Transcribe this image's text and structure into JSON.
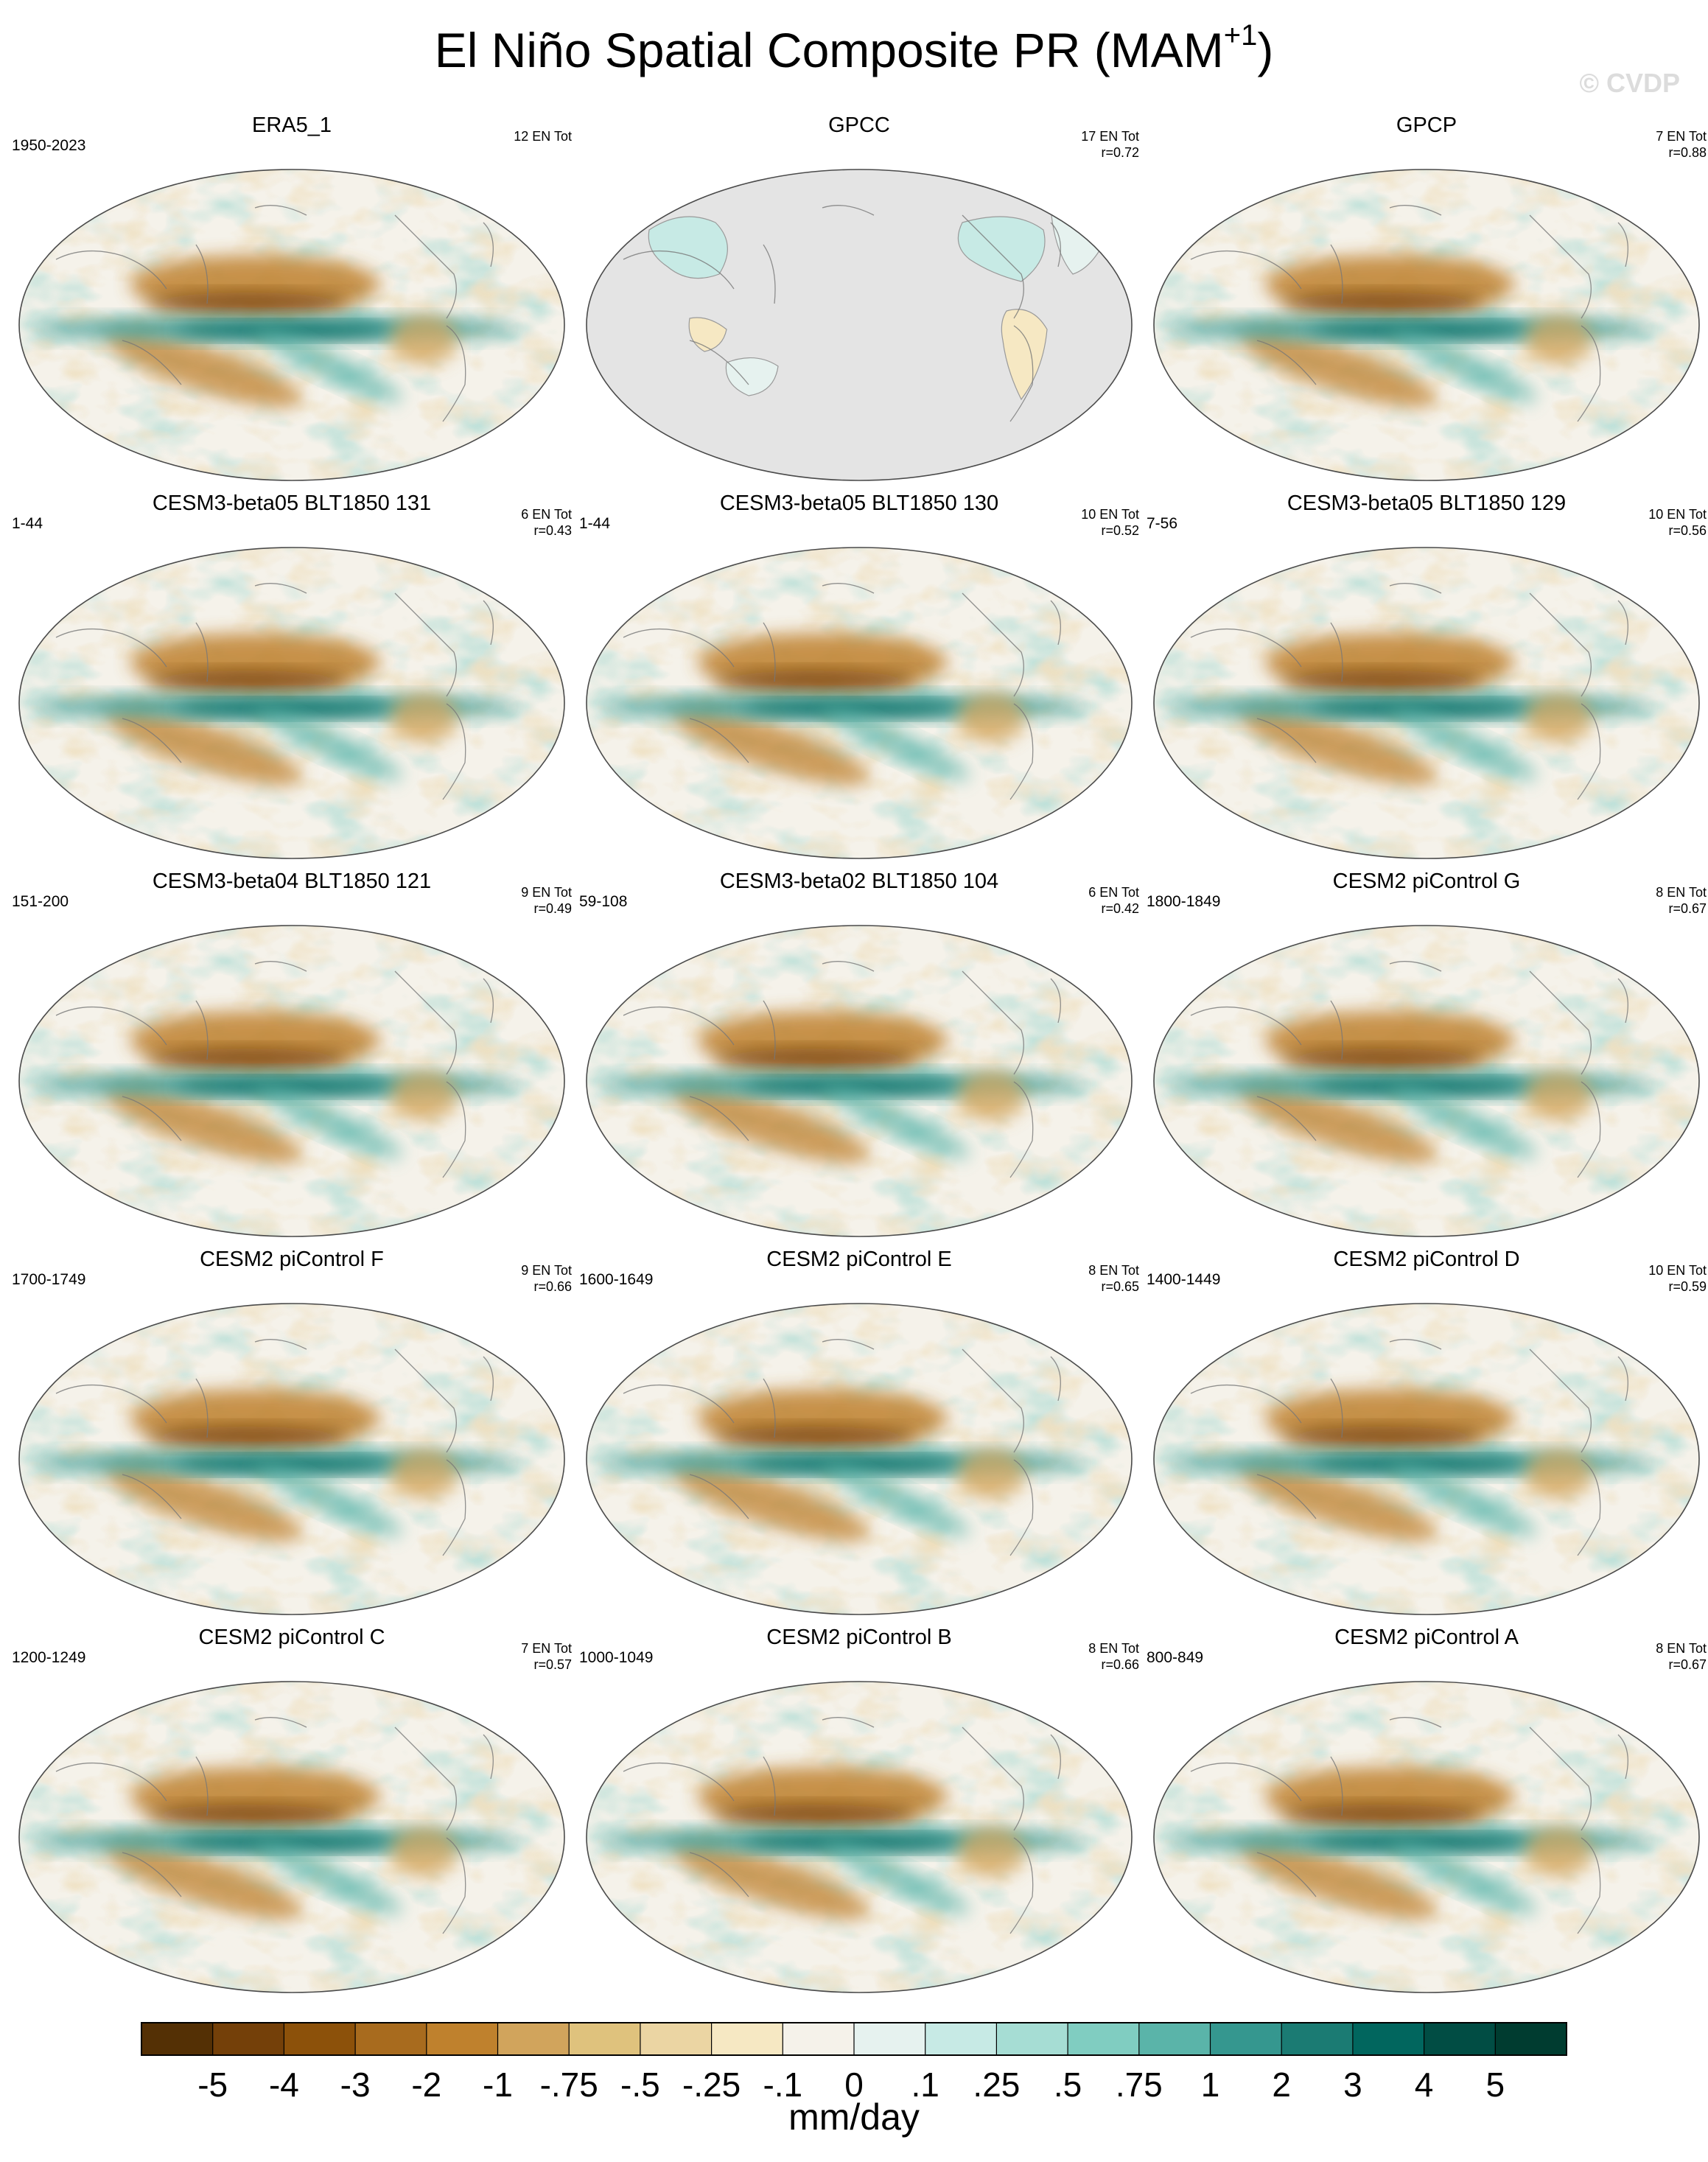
{
  "header": {
    "title_main": "El Niño Spatial Composite PR (MAM",
    "title_sup": "+1",
    "title_end": ")",
    "watermark": "© CVDP"
  },
  "chart_data": {
    "type": "heatmap",
    "units": "mm/day",
    "colorbar": {
      "labels": [
        "-5",
        "-4",
        "-3",
        "-2",
        "-1",
        "-.75",
        "-.5",
        "-.25",
        "-.1",
        "0",
        ".1",
        ".25",
        ".5",
        ".75",
        "1",
        "2",
        "3",
        "4",
        "5"
      ],
      "colors": [
        "#543005",
        "#744009",
        "#8c510a",
        "#a86b1e",
        "#bf812d",
        "#d1a45c",
        "#dfc27d",
        "#ebd5a3",
        "#f6e8c3",
        "#f5f2ea",
        "#e6f2ef",
        "#c7eae5",
        "#a6ddd4",
        "#80cdc1",
        "#5ab4a9",
        "#35978f",
        "#1b7b73",
        "#01665e",
        "#014d44",
        "#003c30"
      ],
      "label": "mm/day"
    },
    "panels": [
      {
        "title": "ERA5_1",
        "period": "1950-2023",
        "events": "12 EN Tot",
        "r": ""
      },
      {
        "title": "GPCC",
        "period": "",
        "events": "17 EN Tot",
        "r": "r=0.72"
      },
      {
        "title": "GPCP",
        "period": "",
        "events": "7 EN Tot",
        "r": "r=0.88"
      },
      {
        "title": "CESM3-beta05 BLT1850 131",
        "period": "1-44",
        "events": "6 EN Tot",
        "r": "r=0.43"
      },
      {
        "title": "CESM3-beta05 BLT1850 130",
        "period": "1-44",
        "events": "10 EN Tot",
        "r": "r=0.52"
      },
      {
        "title": "CESM3-beta05 BLT1850 129",
        "period": "7-56",
        "events": "10 EN Tot",
        "r": "r=0.56"
      },
      {
        "title": "CESM3-beta04 BLT1850 121",
        "period": "151-200",
        "events": "9 EN Tot",
        "r": "r=0.49"
      },
      {
        "title": "CESM3-beta02 BLT1850 104",
        "period": "59-108",
        "events": "6 EN Tot",
        "r": "r=0.42"
      },
      {
        "title": "CESM2 piControl G",
        "period": "1800-1849",
        "events": "8 EN Tot",
        "r": "r=0.67"
      },
      {
        "title": "CESM2 piControl F",
        "period": "1700-1749",
        "events": "9 EN Tot",
        "r": "r=0.66"
      },
      {
        "title": "CESM2 piControl E",
        "period": "1600-1649",
        "events": "8 EN Tot",
        "r": "r=0.65"
      },
      {
        "title": "CESM2 piControl D",
        "period": "1400-1449",
        "events": "10 EN Tot",
        "r": "r=0.59"
      },
      {
        "title": "CESM2 piControl C",
        "period": "1200-1249",
        "events": "7 EN Tot",
        "r": "r=0.57"
      },
      {
        "title": "CESM2 piControl B",
        "period": "1000-1049",
        "events": "8 EN Tot",
        "r": "r=0.66"
      },
      {
        "title": "CESM2 piControl A",
        "period": "800-849",
        "events": "8 EN Tot",
        "r": "r=0.67"
      }
    ]
  }
}
